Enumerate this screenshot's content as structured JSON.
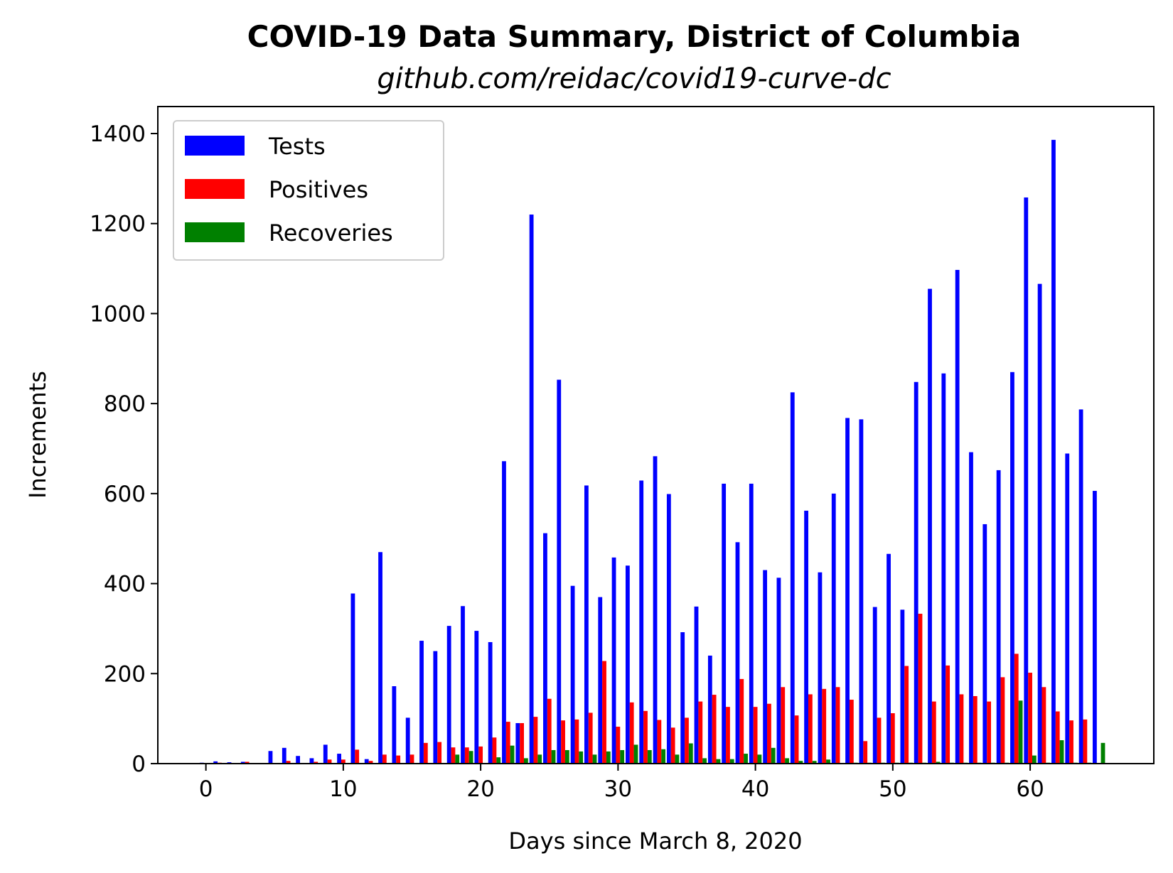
{
  "chart_data": {
    "type": "bar",
    "title": "COVID-19 Data Summary, District of Columbia",
    "subtitle": "github.com/reidac/covid19-curve-dc",
    "xlabel": "Days since March 8, 2020",
    "ylabel": "Increments",
    "xlim": [
      -3.5,
      69
    ],
    "ylim": [
      0,
      1460
    ],
    "xticks": [
      0,
      10,
      20,
      30,
      40,
      50,
      60
    ],
    "yticks": [
      0,
      200,
      400,
      600,
      800,
      1000,
      1200,
      1400
    ],
    "bar_width": 0.3,
    "legend_position": "upper-left",
    "series": [
      {
        "name": "Tests",
        "color": "#0000ff",
        "offset": -0.3,
        "values": [
          2,
          5,
          3,
          4,
          0,
          28,
          35,
          17,
          12,
          42,
          22,
          378,
          10,
          470,
          172,
          102,
          273,
          250,
          306,
          350,
          295,
          270,
          672,
          90,
          1220,
          512,
          853,
          395,
          618,
          370,
          458,
          440,
          629,
          683,
          599,
          292,
          349,
          240,
          622,
          492,
          622,
          430,
          413,
          825,
          562,
          425,
          600,
          768,
          765,
          348,
          466,
          342,
          848,
          1055,
          867,
          1097,
          692,
          532,
          652,
          870,
          1258,
          1066,
          1386,
          689,
          787,
          606
        ]
      },
      {
        "name": "Positives",
        "color": "#ff0000",
        "offset": 0,
        "values": [
          1,
          2,
          1,
          4,
          0,
          0,
          6,
          0,
          4,
          9,
          9,
          31,
          6,
          20,
          18,
          20,
          46,
          48,
          36,
          36,
          38,
          58,
          93,
          90,
          104,
          144,
          96,
          98,
          113,
          228,
          82,
          136,
          117,
          97,
          80,
          102,
          138,
          153,
          126,
          188,
          126,
          133,
          170,
          107,
          154,
          166,
          170,
          142,
          50,
          102,
          112,
          217,
          333,
          138,
          218,
          154,
          150,
          138,
          192,
          244,
          202,
          170,
          116,
          96,
          98,
          0
        ]
      },
      {
        "name": "Recoveries",
        "color": "#008000",
        "offset": 0.3,
        "values": [
          0,
          0,
          0,
          0,
          0,
          0,
          0,
          0,
          0,
          0,
          0,
          0,
          0,
          0,
          0,
          0,
          0,
          0,
          20,
          28,
          0,
          14,
          40,
          12,
          20,
          30,
          30,
          27,
          20,
          27,
          30,
          42,
          30,
          32,
          20,
          45,
          12,
          10,
          10,
          22,
          20,
          35,
          12,
          6,
          6,
          9,
          0,
          2,
          2,
          2,
          2,
          2,
          2,
          4,
          2,
          2,
          2,
          2,
          2,
          140,
          18,
          2,
          52,
          2,
          2,
          46
        ]
      }
    ]
  }
}
